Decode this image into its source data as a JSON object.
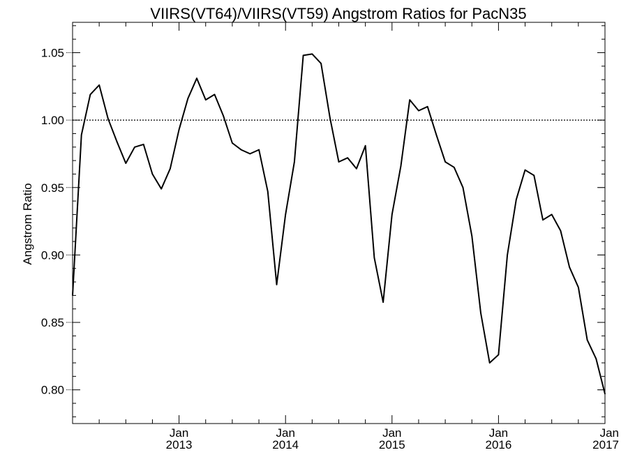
{
  "chart_data": {
    "type": "line",
    "title": "VIIRS(VT64)/VIIRS(VT59)  Angstrom Ratios for PacN35",
    "xlabel": "",
    "ylabel": "Angstrom Ratio",
    "xlim": [
      "2012-01",
      "2017-01"
    ],
    "ylim": [
      0.775,
      1.0725
    ],
    "grid": false,
    "yticks": [
      {
        "value": 0.8,
        "label": "0.80"
      },
      {
        "value": 0.85,
        "label": "0.85"
      },
      {
        "value": 0.9,
        "label": "0.90"
      },
      {
        "value": 0.95,
        "label": "0.95"
      },
      {
        "value": 1.0,
        "label": "1.00"
      },
      {
        "value": 1.05,
        "label": "1.05"
      }
    ],
    "xticks": [
      {
        "x": "2013-01",
        "label_top": "Jan",
        "label_bottom": "2013"
      },
      {
        "x": "2014-01",
        "label_top": "Jan",
        "label_bottom": "2014"
      },
      {
        "x": "2015-01",
        "label_top": "Jan",
        "label_bottom": "2015"
      },
      {
        "x": "2016-01",
        "label_top": "Jan",
        "label_bottom": "2016"
      },
      {
        "x": "2017-01",
        "label_top": "Jan",
        "label_bottom": "2017"
      }
    ],
    "reference_line": {
      "y": 1.0,
      "style": "dotted"
    },
    "series": [
      {
        "color": "#000000",
        "x": [
          "2012-01",
          "2012-02",
          "2012-03",
          "2012-04",
          "2012-05",
          "2012-06",
          "2012-07",
          "2012-08",
          "2012-09",
          "2012-10",
          "2012-11",
          "2012-12",
          "2013-01",
          "2013-02",
          "2013-03",
          "2013-04",
          "2013-05",
          "2013-06",
          "2013-07",
          "2013-08",
          "2013-09",
          "2013-10",
          "2013-11",
          "2013-12",
          "2014-01",
          "2014-02",
          "2014-03",
          "2014-04",
          "2014-05",
          "2014-06",
          "2014-07",
          "2014-08",
          "2014-09",
          "2014-10",
          "2014-11",
          "2014-12",
          "2015-01",
          "2015-02",
          "2015-03",
          "2015-04",
          "2015-05",
          "2015-06",
          "2015-07",
          "2015-08",
          "2015-09",
          "2015-10",
          "2015-11",
          "2015-12",
          "2016-01",
          "2016-02",
          "2016-03",
          "2016-04",
          "2016-05",
          "2016-06",
          "2016-07",
          "2016-08",
          "2016-09",
          "2016-10",
          "2016-11",
          "2016-12",
          "2017-01"
        ],
        "y": [
          0.87,
          0.989,
          1.019,
          1.026,
          1.001,
          0.984,
          0.968,
          0.98,
          0.982,
          0.96,
          0.949,
          0.964,
          0.993,
          1.016,
          1.031,
          1.015,
          1.019,
          1.003,
          0.983,
          0.978,
          0.975,
          0.978,
          0.947,
          0.878,
          0.93,
          0.969,
          1.048,
          1.049,
          1.042,
          1.002,
          0.969,
          0.972,
          0.964,
          0.981,
          0.898,
          0.865,
          0.93,
          0.966,
          1.015,
          1.007,
          1.01,
          0.989,
          0.969,
          0.965,
          0.95,
          0.914,
          0.857,
          0.82,
          0.826,
          0.9,
          0.941,
          0.963,
          0.959,
          0.926,
          0.93,
          0.918,
          0.891,
          0.876,
          0.837,
          0.823,
          0.797
        ]
      }
    ]
  }
}
